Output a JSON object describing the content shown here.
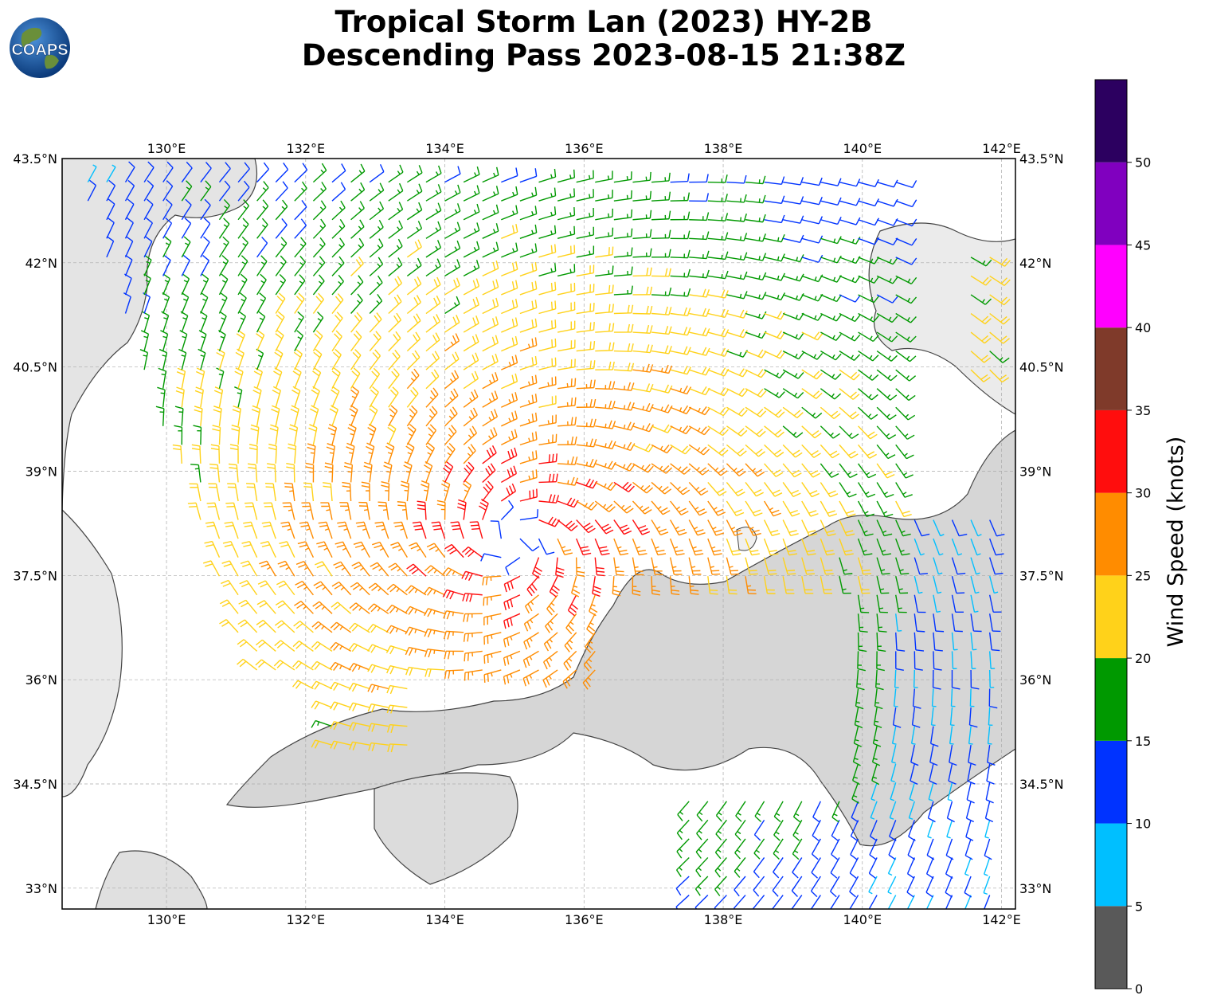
{
  "header": {
    "logo_text": "COAPS",
    "title_line1": "Tropical Storm Lan (2023) HY-2B",
    "title_line2": "Descending Pass 2023-08-15 21:38Z"
  },
  "map": {
    "lon_range": [
      128.5,
      142.2
    ],
    "lat_range": [
      32.7,
      43.5
    ],
    "lon_ticks": [
      "130°E",
      "132°E",
      "134°E",
      "136°E",
      "138°E",
      "140°E",
      "142°E"
    ],
    "lon_tick_values": [
      130,
      132,
      134,
      136,
      138,
      140,
      142
    ],
    "lat_ticks": [
      "43.5°N",
      "42°N",
      "40.5°N",
      "39°N",
      "37.5°N",
      "36°N",
      "34.5°N",
      "33°N"
    ],
    "lat_tick_values": [
      43.5,
      42,
      40.5,
      39,
      37.5,
      36,
      34.5,
      33
    ],
    "storm_center": {
      "lon": 135.0,
      "lat": 38.0
    }
  },
  "colorbar": {
    "label": "Wind Speed (knots)",
    "tick_labels": [
      "0",
      "5",
      "10",
      "15",
      "20",
      "25",
      "30",
      "35",
      "40",
      "45",
      "50"
    ],
    "bins": [
      {
        "min": 0,
        "max": 5,
        "color": "#595959"
      },
      {
        "min": 5,
        "max": 10,
        "color": "#00bfff"
      },
      {
        "min": 10,
        "max": 15,
        "color": "#0033ff"
      },
      {
        "min": 15,
        "max": 20,
        "color": "#009900"
      },
      {
        "min": 20,
        "max": 25,
        "color": "#ffd21a"
      },
      {
        "min": 25,
        "max": 30,
        "color": "#ff8c00"
      },
      {
        "min": 30,
        "max": 35,
        "color": "#ff0d0d"
      },
      {
        "min": 35,
        "max": 40,
        "color": "#7f3a2a"
      },
      {
        "min": 40,
        "max": 45,
        "color": "#ff00ff"
      },
      {
        "min": 45,
        "max": 50,
        "color": "#8000bf"
      },
      {
        "min": 50,
        "max": 55,
        "color": "#2c0060"
      }
    ]
  }
}
